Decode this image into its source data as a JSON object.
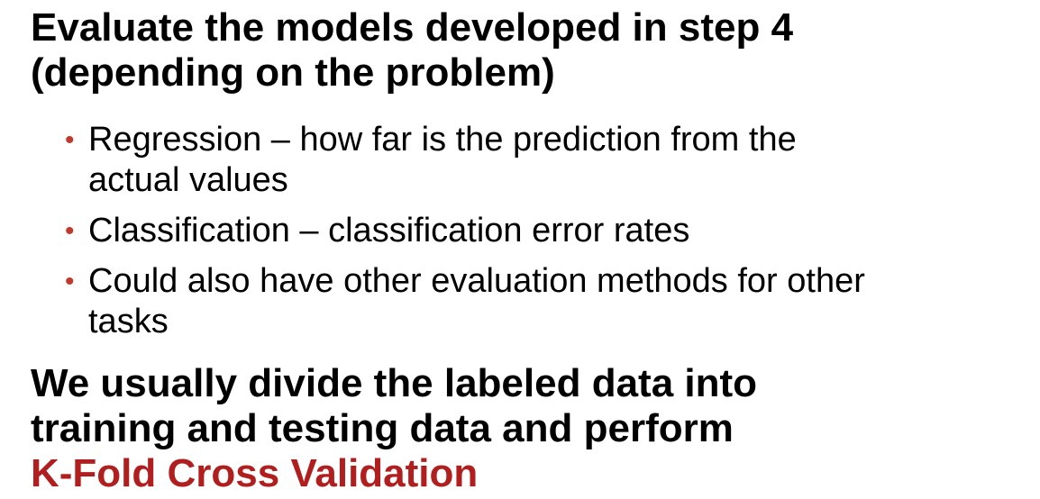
{
  "heading_1": {
    "line_1": "Evaluate the models developed in step 4",
    "line_2": "(depending on the problem)"
  },
  "bullets": [
    {
      "line_1": "Regression – how far is the prediction from the",
      "line_2": "actual values"
    },
    {
      "line_1": "Classification – classification error rates"
    },
    {
      "line_1": "Could also have other evaluation methods for other",
      "line_2": "tasks"
    }
  ],
  "heading_2": {
    "line_1": "We usually divide the labeled data into",
    "line_2": "training and testing data and perform",
    "accent": "K-Fold Cross Validation"
  },
  "colors": {
    "text": "#000000",
    "accent": "#b01e1e",
    "bullet": "#c0392b"
  }
}
